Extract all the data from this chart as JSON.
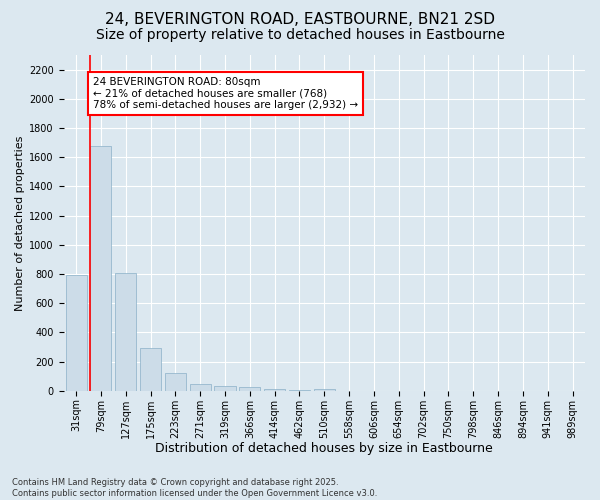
{
  "title_line1": "24, BEVERINGTON ROAD, EASTBOURNE, BN21 2SD",
  "title_line2": "Size of property relative to detached houses in Eastbourne",
  "xlabel": "Distribution of detached houses by size in Eastbourne",
  "ylabel": "Number of detached properties",
  "categories": [
    "31sqm",
    "79sqm",
    "127sqm",
    "175sqm",
    "223sqm",
    "271sqm",
    "319sqm",
    "366sqm",
    "414sqm",
    "462sqm",
    "510sqm",
    "558sqm",
    "606sqm",
    "654sqm",
    "702sqm",
    "750sqm",
    "798sqm",
    "846sqm",
    "894sqm",
    "941sqm",
    "989sqm"
  ],
  "values": [
    790,
    1680,
    810,
    290,
    120,
    50,
    35,
    25,
    10,
    5,
    10,
    2,
    0,
    0,
    0,
    0,
    0,
    0,
    0,
    0,
    0
  ],
  "bar_color": "#ccdce8",
  "bar_edge_color": "#8ab0c8",
  "property_line_color": "red",
  "annotation_box_text": "24 BEVERINGTON ROAD: 80sqm\n← 21% of detached houses are smaller (768)\n78% of semi-detached houses are larger (2,932) →",
  "ylim": [
    0,
    2300
  ],
  "yticks": [
    0,
    200,
    400,
    600,
    800,
    1000,
    1200,
    1400,
    1600,
    1800,
    2000,
    2200
  ],
  "background_color": "#dce8f0",
  "plot_bg_color": "#dce8f0",
  "grid_color": "white",
  "footer_text": "Contains HM Land Registry data © Crown copyright and database right 2025.\nContains public sector information licensed under the Open Government Licence v3.0.",
  "title_fontsize": 11,
  "subtitle_fontsize": 10,
  "xlabel_fontsize": 9,
  "ylabel_fontsize": 8,
  "tick_fontsize": 7,
  "annotation_fontsize": 7.5,
  "footer_fontsize": 6
}
